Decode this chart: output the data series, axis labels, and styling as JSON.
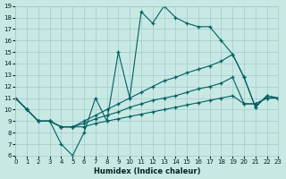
{
  "xlabel": "Humidex (Indice chaleur)",
  "xlim": [
    0,
    23
  ],
  "ylim": [
    6,
    19
  ],
  "xticks": [
    0,
    1,
    2,
    3,
    4,
    5,
    6,
    7,
    8,
    9,
    10,
    11,
    12,
    13,
    14,
    15,
    16,
    17,
    18,
    19,
    20,
    21,
    22,
    23
  ],
  "yticks": [
    6,
    7,
    8,
    9,
    10,
    11,
    12,
    13,
    14,
    15,
    16,
    17,
    18,
    19
  ],
  "bg_color": "#c8e8e4",
  "grid_color": "#a0cccc",
  "line_color": "#006060",
  "series": [
    {
      "x": [
        0,
        1,
        2,
        3,
        4,
        5,
        6,
        7,
        8,
        9,
        10,
        11,
        12,
        13,
        14,
        15,
        16,
        17,
        18,
        19,
        20,
        21,
        22,
        23
      ],
      "y": [
        11,
        10,
        9,
        9,
        7,
        6,
        8,
        11,
        9,
        15,
        11,
        18.5,
        17.5,
        19,
        18,
        17.5,
        17.2,
        17.2,
        16,
        14.8,
        12.8,
        10.2,
        11.2,
        11
      ]
    },
    {
      "x": [
        0,
        1,
        2,
        3,
        4,
        5,
        6,
        7,
        8,
        9,
        10,
        11,
        12,
        13,
        14,
        15,
        16,
        17,
        18,
        19,
        20,
        21,
        22,
        23
      ],
      "y": [
        11,
        10,
        9,
        9,
        8.5,
        8.5,
        9.0,
        9.5,
        10.0,
        10.5,
        11.0,
        11.5,
        12.0,
        12.5,
        12.8,
        13.2,
        13.5,
        13.8,
        14.2,
        14.8,
        12.8,
        10.2,
        11.2,
        11
      ]
    },
    {
      "x": [
        0,
        1,
        2,
        3,
        4,
        5,
        6,
        7,
        8,
        9,
        10,
        11,
        12,
        13,
        14,
        15,
        16,
        17,
        18,
        19,
        20,
        21,
        22,
        23
      ],
      "y": [
        11,
        10,
        9,
        9,
        8.5,
        8.5,
        8.8,
        9.2,
        9.5,
        9.8,
        10.2,
        10.5,
        10.8,
        11.0,
        11.2,
        11.5,
        11.8,
        12.0,
        12.3,
        12.8,
        10.5,
        10.5,
        11.0,
        11
      ]
    },
    {
      "x": [
        0,
        1,
        2,
        3,
        4,
        5,
        6,
        7,
        8,
        9,
        10,
        11,
        12,
        13,
        14,
        15,
        16,
        17,
        18,
        19,
        20,
        21,
        22,
        23
      ],
      "y": [
        11,
        10,
        9,
        9,
        8.5,
        8.5,
        8.5,
        8.8,
        9.0,
        9.2,
        9.4,
        9.6,
        9.8,
        10.0,
        10.2,
        10.4,
        10.6,
        10.8,
        11.0,
        11.2,
        10.5,
        10.5,
        11.0,
        11
      ]
    }
  ]
}
